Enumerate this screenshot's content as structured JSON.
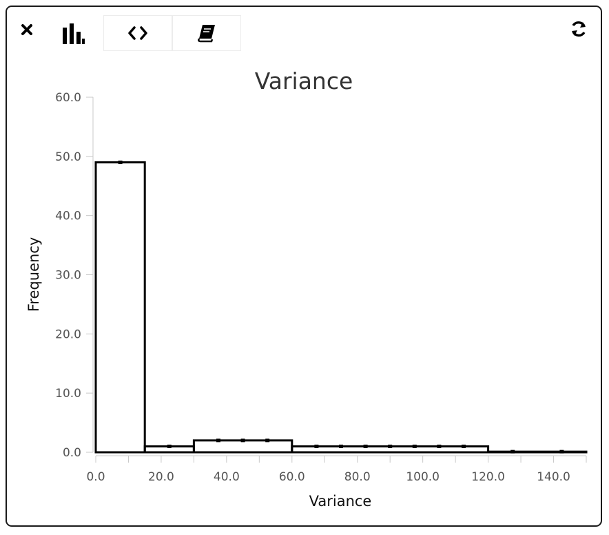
{
  "toolbar": {
    "close_icon": "close-icon",
    "tabs": [
      {
        "name": "histogram",
        "icon": "bar-chart-icon",
        "active": true
      },
      {
        "name": "code",
        "icon": "code-icon",
        "active": false
      },
      {
        "name": "docs",
        "icon": "book-icon",
        "active": false
      }
    ],
    "refresh_icon": "refresh-icon"
  },
  "chart_data": {
    "type": "bar",
    "style": "step-histogram",
    "title": "Variance",
    "xlabel": "Variance",
    "ylabel": "Frequency",
    "xlim": [
      0,
      150
    ],
    "ylim": [
      0,
      60
    ],
    "xticks": [
      "0.0",
      "20.0",
      "40.0",
      "60.0",
      "80.0",
      "100.0",
      "120.0",
      "140.0"
    ],
    "yticks": [
      "0.0",
      "10.0",
      "20.0",
      "30.0",
      "40.0",
      "50.0",
      "60.0"
    ],
    "bins": [
      {
        "x0": 0,
        "x1": 15,
        "value": 49
      },
      {
        "x0": 15,
        "x1": 30,
        "value": 1
      },
      {
        "x0": 30,
        "x1": 60,
        "value": 2
      },
      {
        "x0": 60,
        "x1": 120,
        "value": 1
      },
      {
        "x0": 120,
        "x1": 150,
        "value": 0.1
      }
    ],
    "markers": [
      {
        "x": 7.5,
        "y": 49
      },
      {
        "x": 22.5,
        "y": 1
      },
      {
        "x": 37.5,
        "y": 2
      },
      {
        "x": 45,
        "y": 2
      },
      {
        "x": 52.5,
        "y": 2
      },
      {
        "x": 67.5,
        "y": 1
      },
      {
        "x": 75,
        "y": 1
      },
      {
        "x": 82.5,
        "y": 1
      },
      {
        "x": 90,
        "y": 1
      },
      {
        "x": 97.5,
        "y": 1
      },
      {
        "x": 105,
        "y": 1
      },
      {
        "x": 112.5,
        "y": 1
      },
      {
        "x": 127.5,
        "y": 0.1
      },
      {
        "x": 142.5,
        "y": 0.1
      }
    ],
    "grid": false,
    "legend": "none"
  }
}
